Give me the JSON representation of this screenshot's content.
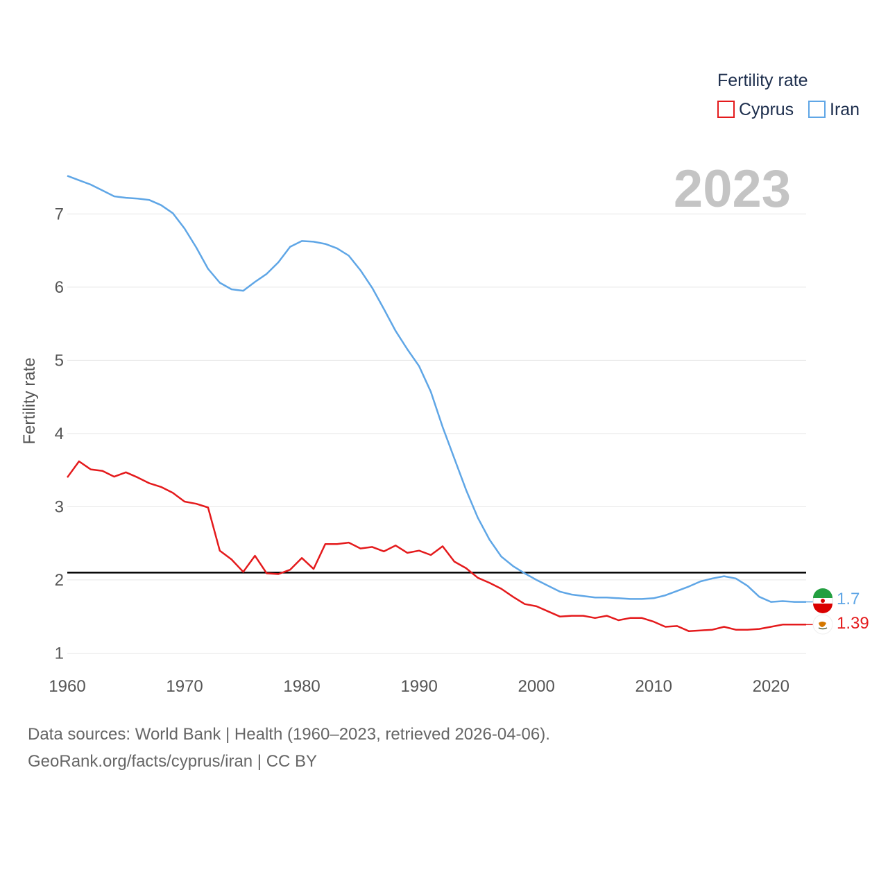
{
  "footer": {
    "line1": "Data sources: World Bank | Health (1960–2023, retrieved 2026-04-06).",
    "line2": "GeoRank.org/facts/cyprus/iran | CC BY"
  },
  "colors": {
    "cyprus": "#e41a1c",
    "iran": "#5fa6e6",
    "grid": "#e6e6e6",
    "reference": "#000000"
  },
  "chart_data": {
    "type": "line",
    "title": "",
    "year_label": "2023",
    "xlabel": "",
    "ylabel": "Fertility rate",
    "xlim": [
      1960,
      2023
    ],
    "ylim": [
      0.9,
      7.6
    ],
    "x_ticks": [
      1960,
      1970,
      1980,
      1990,
      2000,
      2010,
      2020
    ],
    "y_ticks": [
      1,
      2,
      3,
      4,
      5,
      6,
      7
    ],
    "grid": true,
    "reference_line": 2.1,
    "legend": {
      "title": "Fertility rate",
      "position": "top-right",
      "entries": [
        "Cyprus",
        "Iran"
      ]
    },
    "x": [
      1960,
      1961,
      1962,
      1963,
      1964,
      1965,
      1966,
      1967,
      1968,
      1969,
      1970,
      1971,
      1972,
      1973,
      1974,
      1975,
      1976,
      1977,
      1978,
      1979,
      1980,
      1981,
      1982,
      1983,
      1984,
      1985,
      1986,
      1987,
      1988,
      1989,
      1990,
      1991,
      1992,
      1993,
      1994,
      1995,
      1996,
      1997,
      1998,
      1999,
      2000,
      2001,
      2002,
      2003,
      2004,
      2005,
      2006,
      2007,
      2008,
      2009,
      2010,
      2011,
      2012,
      2013,
      2014,
      2015,
      2016,
      2017,
      2018,
      2019,
      2020,
      2021,
      2022,
      2023
    ],
    "series": [
      {
        "name": "Cyprus",
        "color": "#e41a1c",
        "end_label": "1.39",
        "values": [
          3.4,
          3.62,
          3.51,
          3.49,
          3.41,
          3.47,
          3.4,
          3.32,
          3.27,
          3.19,
          3.07,
          3.04,
          2.99,
          2.4,
          2.28,
          2.11,
          2.33,
          2.09,
          2.08,
          2.14,
          2.3,
          2.15,
          2.49,
          2.49,
          2.51,
          2.43,
          2.45,
          2.39,
          2.47,
          2.37,
          2.4,
          2.34,
          2.46,
          2.25,
          2.16,
          2.03,
          1.96,
          1.88,
          1.77,
          1.67,
          1.64,
          1.57,
          1.5,
          1.51,
          1.51,
          1.48,
          1.51,
          1.45,
          1.48,
          1.48,
          1.43,
          1.36,
          1.37,
          1.3,
          1.31,
          1.32,
          1.36,
          1.32,
          1.32,
          1.33,
          1.36,
          1.39,
          1.39,
          1.39
        ]
      },
      {
        "name": "Iran",
        "color": "#5fa6e6",
        "end_label": "1.7",
        "values": [
          7.52,
          7.46,
          7.4,
          7.32,
          7.24,
          7.22,
          7.21,
          7.19,
          7.12,
          7.01,
          6.8,
          6.54,
          6.25,
          6.06,
          5.97,
          5.95,
          6.07,
          6.18,
          6.34,
          6.55,
          6.63,
          6.62,
          6.59,
          6.53,
          6.43,
          6.23,
          5.99,
          5.7,
          5.4,
          5.15,
          4.92,
          4.57,
          4.09,
          3.66,
          3.23,
          2.85,
          2.55,
          2.32,
          2.19,
          2.09,
          2.0,
          1.92,
          1.84,
          1.8,
          1.78,
          1.76,
          1.76,
          1.75,
          1.74,
          1.74,
          1.75,
          1.79,
          1.85,
          1.91,
          1.98,
          2.02,
          2.05,
          2.02,
          1.92,
          1.77,
          1.7,
          1.71,
          1.7,
          1.7
        ]
      }
    ]
  }
}
